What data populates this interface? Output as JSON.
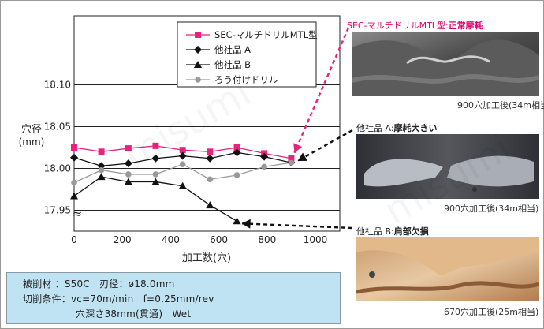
{
  "chart_data": {
    "type": "line",
    "ylabel": "穴径\n(mm)",
    "xlabel": "加工数(穴)",
    "x_ticks": [
      "0",
      "200",
      "400",
      "600",
      "800",
      "1000"
    ],
    "y_ticks": [
      "17.95",
      "18.00",
      "18.05",
      "18.10"
    ],
    "y_break_symbol": "≈",
    "xlim": [
      0,
      1000
    ],
    "ylim": [
      17.925,
      18.125
    ],
    "grid": "horizontal",
    "legend_position": "top-right",
    "series": [
      {
        "name": "SEC-マルチドリルMTL型",
        "marker": "square",
        "color": "#e8237e",
        "x": [
          0,
          113,
          225,
          338,
          450,
          563,
          675,
          788,
          900
        ],
        "y": [
          18.025,
          18.02,
          18.024,
          18.027,
          18.022,
          18.02,
          18.025,
          18.018,
          18.012
        ]
      },
      {
        "name": "他社品 A",
        "marker": "diamond",
        "color": "#111111",
        "x": [
          0,
          113,
          225,
          338,
          450,
          563,
          675,
          788,
          900
        ],
        "y": [
          18.013,
          18.003,
          18.006,
          18.012,
          18.015,
          18.012,
          18.019,
          18.014,
          18.007
        ]
      },
      {
        "name": "他社品 B",
        "marker": "triangle",
        "color": "#111111",
        "x": [
          0,
          113,
          225,
          338,
          450,
          563,
          675
        ],
        "y": [
          17.967,
          17.99,
          17.984,
          17.984,
          17.979,
          17.956,
          17.937
        ]
      },
      {
        "name": "ろう付けドリル",
        "marker": "circle",
        "color": "#9a9a9a",
        "x": [
          0,
          113,
          225,
          338,
          450,
          563,
          675,
          788,
          900
        ],
        "y": [
          17.983,
          17.998,
          17.993,
          17.993,
          18.005,
          17.987,
          17.992,
          18.002,
          18.007
        ]
      }
    ]
  },
  "conditions": {
    "line1": "被削材 ：S50C　刃径：ø18.0mm",
    "line2": "切削条件：vc=70m/min　f=0.25mm/rev",
    "line3": "穴深さ38mm(貫通)　Wet"
  },
  "photos": [
    {
      "title_prefix": "SEC-マルチドリルMTL型:",
      "title_main": "正常摩耗",
      "caption": "900穴加工後(34m相当)",
      "color": "#e0006e"
    },
    {
      "title_prefix": "他社品 A:",
      "title_main": "摩耗大きい",
      "caption": "900穴加工後(34m相当)",
      "color": "#222222"
    },
    {
      "title_prefix": "他社品 B:",
      "title_main": "肩部欠損",
      "caption": "670穴加工後(25m相当)",
      "color": "#222222"
    }
  ],
  "watermark": "misumi"
}
